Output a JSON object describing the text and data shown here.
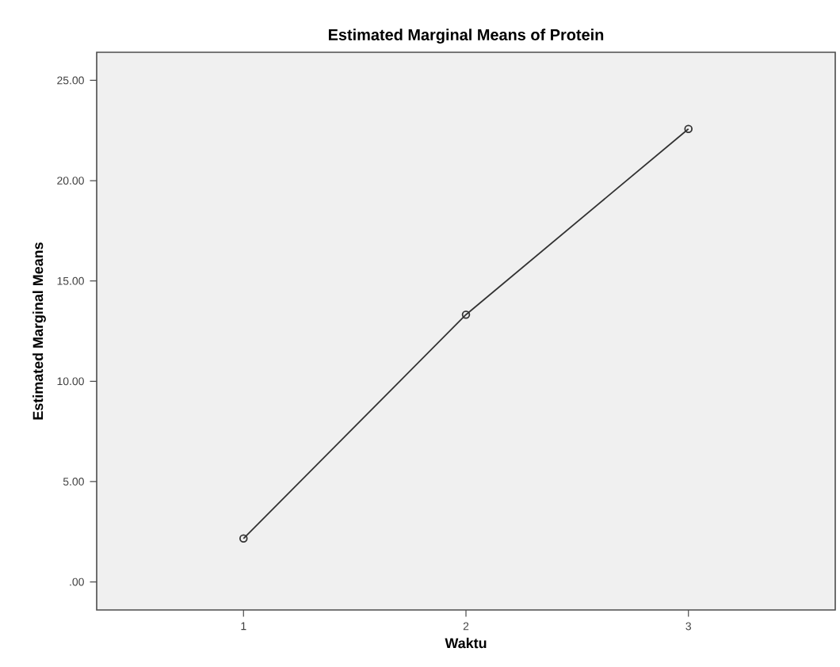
{
  "chart_data": {
    "type": "line",
    "title": "Estimated Marginal Means of Protein",
    "xlabel": "Waktu",
    "ylabel": "Estimated Marginal Means",
    "categories": [
      "1",
      "2",
      "3"
    ],
    "series": [
      {
        "color": "#333333",
        "values": [
          2.16,
          13.32,
          22.58
        ]
      }
    ],
    "ylim": [
      -1.4,
      26.4
    ],
    "yticks": [
      {
        "value": 0,
        "label": ".00"
      },
      {
        "value": 5,
        "label": "5.00"
      },
      {
        "value": 10,
        "label": "10.00"
      },
      {
        "value": 15,
        "label": "15.00"
      },
      {
        "value": 20,
        "label": "20.00"
      },
      {
        "value": 25,
        "label": "25.00"
      }
    ],
    "grid": false,
    "legend": false,
    "marker": "circle",
    "line_style": "solid"
  }
}
